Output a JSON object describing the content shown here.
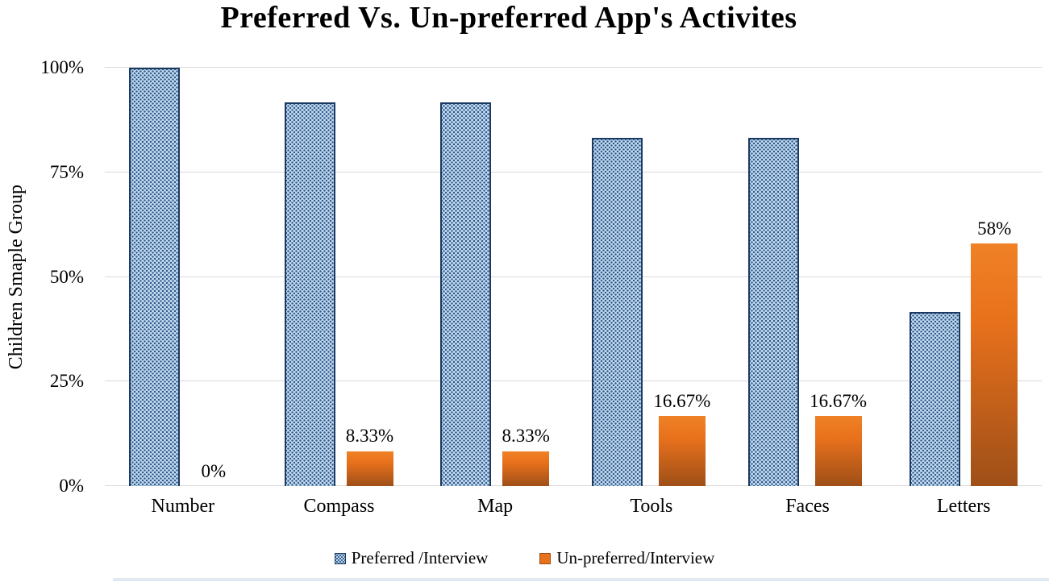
{
  "chart_data": {
    "type": "bar",
    "title": "Preferred Vs. Un-preferred App's Activites",
    "xlabel": "",
    "ylabel": "Children Smaple Group",
    "categories": [
      "Number",
      "Compass",
      "Map",
      "Tools",
      "Faces",
      "Letters"
    ],
    "series": [
      {
        "name": "Preferred /Interview",
        "style": "blue-dotted-pattern",
        "values": [
          100,
          91.67,
          91.67,
          83.33,
          83.33,
          41.67
        ],
        "labels": [
          "",
          "",
          "",
          "",
          "",
          ""
        ]
      },
      {
        "name": "Un-preferred/Interview",
        "style": "orange-gradient",
        "values": [
          0,
          8.33,
          8.33,
          16.67,
          16.67,
          58
        ],
        "labels": [
          "0%",
          "8.33%",
          "8.33%",
          "16.67%",
          "16.67%",
          "58%"
        ]
      }
    ],
    "y_ticks": [
      "0%",
      "25%",
      "50%",
      "75%",
      "100%"
    ],
    "y_tick_values": [
      0,
      25,
      50,
      75,
      100
    ],
    "ylim": [
      0,
      100
    ],
    "grid": true,
    "legend_position": "bottom"
  },
  "colors": {
    "blue_fill": "#C5DDF2",
    "blue_dot": "#2F5788",
    "blue_border": "#1B3A63",
    "orange_top": "#F08125",
    "orange_mid": "#E8711C",
    "orange_bottom": "#9E4F18",
    "gridline": "#D9D9D9",
    "text": "#000000"
  }
}
